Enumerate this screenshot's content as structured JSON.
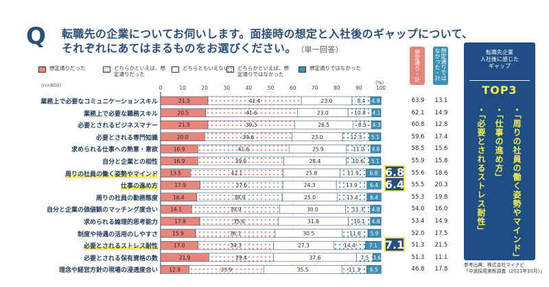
{
  "header": {
    "q_mark": "Q",
    "title_line1": "転職先の企業についてお伺いします。面接時の想定と入社後のギャップについて、",
    "title_line2": "それぞれにあてはまるものをお選びください。",
    "title_note": "（単一回答）"
  },
  "legend": [
    {
      "label": "想定通りだった",
      "color": "#e8857a"
    },
    {
      "label": "どちらかといえば、想定通りだった",
      "color": "#f3d8d2"
    },
    {
      "label": "どちらともいえない",
      "color": "#ffffff"
    },
    {
      "label": "どちらかといえば、想定通りではなかった",
      "color": "#dce8f1"
    },
    {
      "label": "想定通りではなかった",
      "color": "#3d8fb5"
    }
  ],
  "n_label": "(n=800)",
  "columns": {
    "as_expected_total": "想定通り・計",
    "not_expected_total": "想定通りではなかった・計"
  },
  "colors": {
    "navy": "#1f4e86",
    "highlight": "#f6ef4a",
    "seg1": "#e8857a",
    "seg2": "#f3d8d2",
    "seg3": "#ffffff",
    "seg4": "#dce8f1",
    "seg5": "#3d8fb5",
    "col_head_1": "#e8857a",
    "col_head_2": "#3d8fb5"
  },
  "gap_badges": [
    {
      "value": "6.8",
      "row": 6
    },
    {
      "value": "6.4",
      "row": 7
    },
    {
      "value": "7.1",
      "row": 12
    }
  ],
  "side_box": {
    "heading": "転職先企業\n入社後に感じた\nギャップ",
    "top3": "TOP3",
    "items": [
      "・「周りの社員の働く姿勢やマインド」",
      "・「仕事の進め方」",
      "・「必要とされるストレス耐性」"
    ]
  },
  "source": {
    "line1": "参考出典：株式会社マイナビ",
    "line2": "「中途採用実態調査（2021年10月）」"
  },
  "chart_data": {
    "type": "bar",
    "orientation": "horizontal-stacked-100",
    "xlim": [
      0,
      100
    ],
    "x_ticks": [
      "0",
      "10",
      "20",
      "30",
      "40",
      "50",
      "60",
      "70",
      "80",
      "90",
      "100"
    ],
    "x_unit": "(%)",
    "categories": [
      "業務上で必要なコミュニケーションスキル",
      "業務上で必要な職務スキル",
      "必要とされるビジネスマナー",
      "必要とされる専門知識",
      "求められる仕事への熱意・意欲",
      "自分と企業との相性",
      "周りの社員の働く姿勢やマインド",
      "仕事の進め方",
      "周りの社員の勤務態度",
      "自分と企業の価値観のマッチング度合い",
      "求められる論理的思考能力",
      "制度や待遇の活用のしやすさ",
      "必要とされるストレス耐性",
      "必要とされる保有資格の数",
      "理念や経営方針の現場の浸透度合い"
    ],
    "highlighted": [
      6,
      7,
      12
    ],
    "series": [
      {
        "name": "想定通りだった",
        "values": [
          21.5,
          20.5,
          21.5,
          20.0,
          16.9,
          16.9,
          13.5,
          17.9,
          16.4,
          14.1,
          17.8,
          15.9,
          17.0,
          21.9,
          12.9
        ]
      },
      {
        "name": "どちらかといえば、想定通りだった",
        "values": [
          42.4,
          41.6,
          39.3,
          39.6,
          41.6,
          39.0,
          42.1,
          37.6,
          38.9,
          39.9,
          35.6,
          36.1,
          34.3,
          29.4,
          33.9
        ]
      },
      {
        "name": "どちらともいえない",
        "values": [
          23.0,
          23.0,
          26.5,
          23.0,
          25.9,
          28.4,
          25.8,
          24.3,
          25.0,
          30.0,
          31.8,
          30.5,
          27.3,
          37.6,
          35.5
        ]
      },
      {
        "name": "どちらかといえば、想定通りではなかった",
        "values": [
          8.4,
          10.8,
          8.5,
          12.3,
          11.0,
          10.6,
          11.9,
          13.9,
          13.4,
          11.3,
          10.1,
          11.6,
          14.4,
          7.5,
          11.3
        ]
      },
      {
        "name": "想定通りではなかった",
        "values": [
          4.8,
          4.1,
          4.3,
          5.1,
          4.6,
          5.1,
          6.8,
          6.4,
          6.4,
          4.8,
          4.8,
          5.9,
          7.1,
          3.6,
          6.5
        ]
      }
    ],
    "as_expected_total": [
      63.9,
      62.1,
      60.8,
      59.6,
      58.5,
      55.9,
      55.6,
      55.5,
      55.3,
      54.0,
      53.4,
      52.0,
      51.3,
      51.3,
      46.8
    ],
    "not_expected_total": [
      13.1,
      14.9,
      12.8,
      17.4,
      15.6,
      15.8,
      18.6,
      20.3,
      19.8,
      16.0,
      14.9,
      17.5,
      21.5,
      11.1,
      17.8
    ]
  }
}
